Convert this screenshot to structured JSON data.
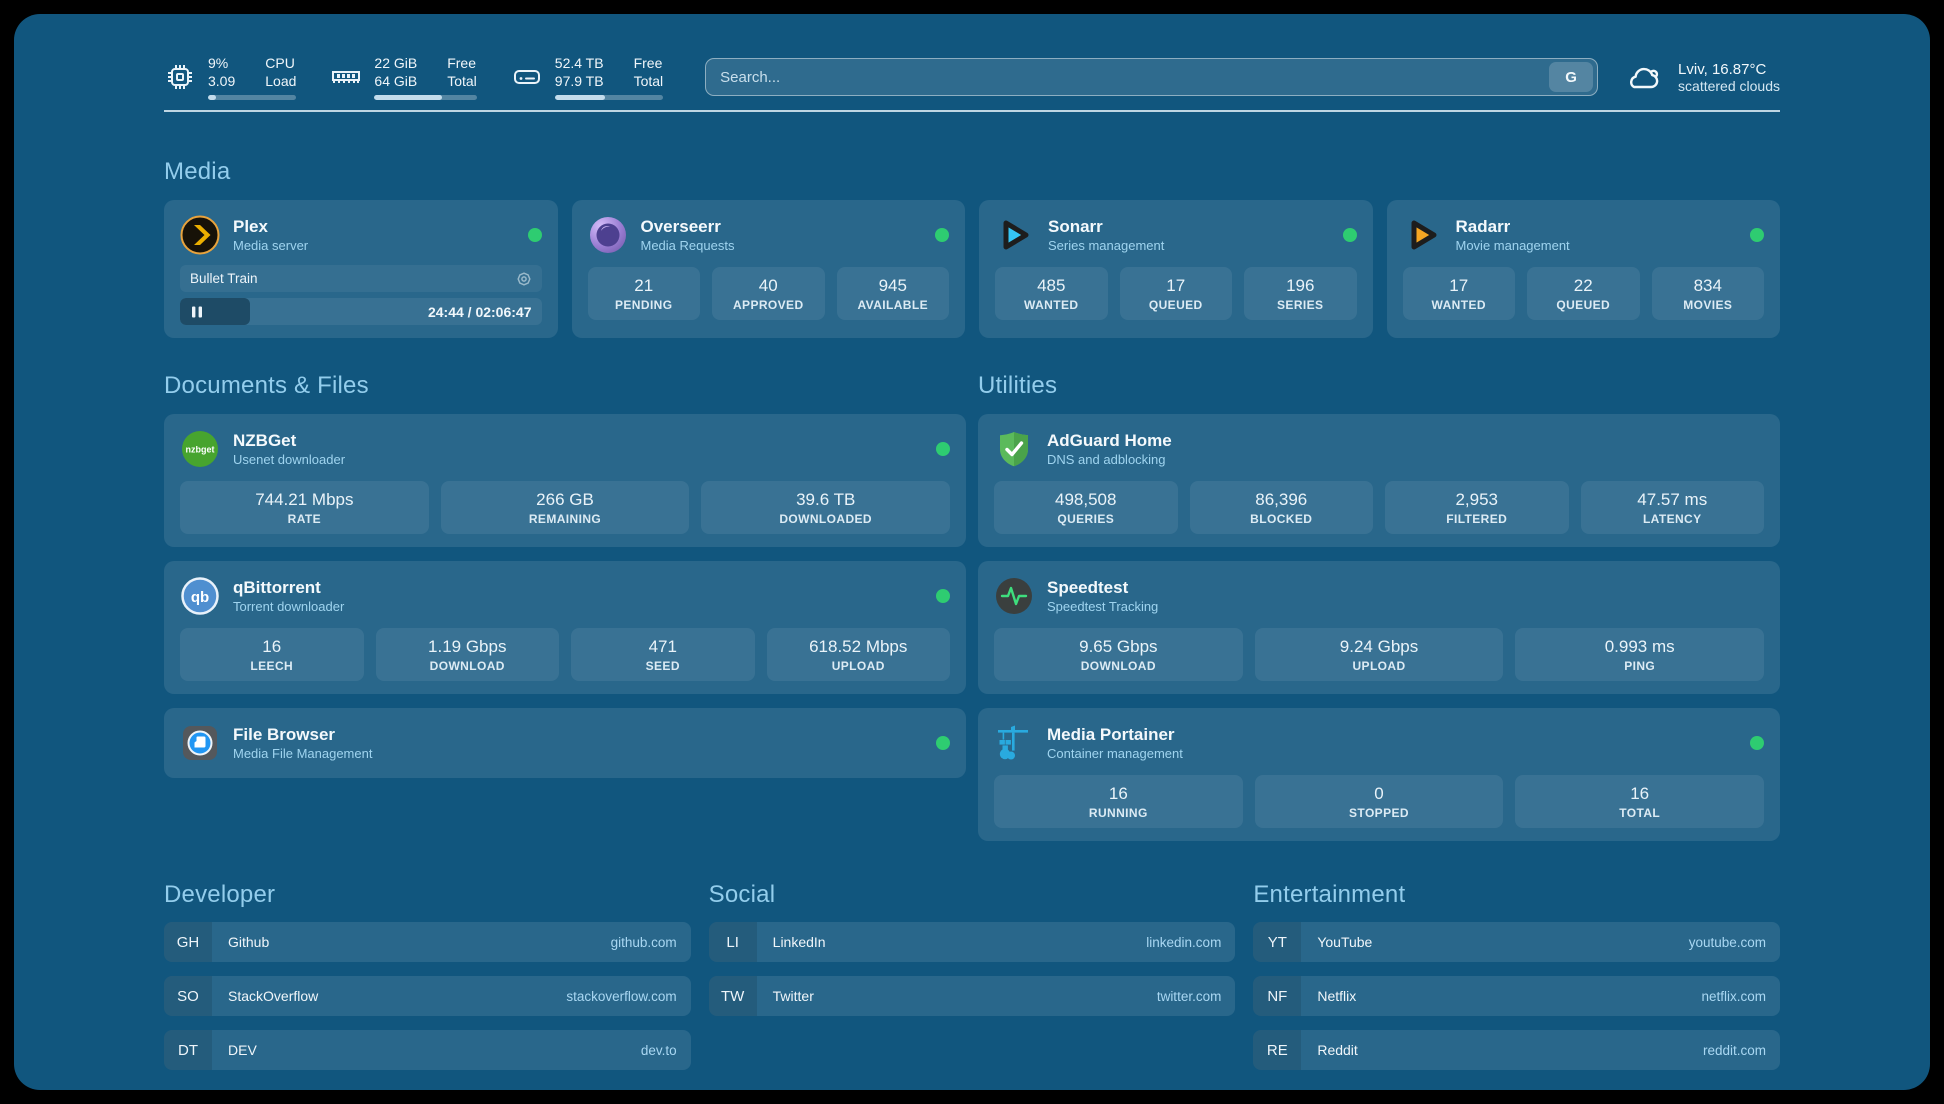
{
  "topbar": {
    "cpu": {
      "value_top": "9%",
      "value_bottom": "3.09",
      "label_top": "CPU",
      "label_bottom": "Load",
      "progress_pct": 9
    },
    "ram": {
      "value_top": "22 GiB",
      "value_bottom": "64 GiB",
      "label_top": "Free",
      "label_bottom": "Total",
      "progress_pct": 66
    },
    "disk": {
      "value_top": "52.4 TB",
      "value_bottom": "97.9 TB",
      "label_top": "Free",
      "label_bottom": "Total",
      "progress_pct": 46
    },
    "search": {
      "placeholder": "Search...",
      "engine_label": "G"
    },
    "weather": {
      "line1": "Lviv, 16.87°C",
      "line2": "scattered clouds"
    }
  },
  "media": {
    "title": "Media",
    "plex": {
      "name": "Plex",
      "subtitle": "Media server",
      "now_playing": "Bullet Train",
      "time": "24:44 / 02:06:47",
      "progress_pct": 19.5
    },
    "overseerr": {
      "name": "Overseerr",
      "subtitle": "Media Requests",
      "stats": [
        {
          "value": "21",
          "label": "PENDING"
        },
        {
          "value": "40",
          "label": "APPROVED"
        },
        {
          "value": "945",
          "label": "AVAILABLE"
        }
      ]
    },
    "sonarr": {
      "name": "Sonarr",
      "subtitle": "Series management",
      "stats": [
        {
          "value": "485",
          "label": "WANTED"
        },
        {
          "value": "17",
          "label": "QUEUED"
        },
        {
          "value": "196",
          "label": "SERIES"
        }
      ]
    },
    "radarr": {
      "name": "Radarr",
      "subtitle": "Movie management",
      "stats": [
        {
          "value": "17",
          "label": "WANTED"
        },
        {
          "value": "22",
          "label": "QUEUED"
        },
        {
          "value": "834",
          "label": "MOVIES"
        }
      ]
    }
  },
  "documents": {
    "title": "Documents & Files",
    "nzbget": {
      "name": "NZBGet",
      "subtitle": "Usenet downloader",
      "icon_label": "nzbget",
      "stats": [
        {
          "value": "744.21 Mbps",
          "label": "RATE"
        },
        {
          "value": "266 GB",
          "label": "REMAINING"
        },
        {
          "value": "39.6 TB",
          "label": "DOWNLOADED"
        }
      ]
    },
    "qbittorrent": {
      "name": "qBittorrent",
      "subtitle": "Torrent downloader",
      "icon_label": "qb",
      "stats": [
        {
          "value": "16",
          "label": "LEECH"
        },
        {
          "value": "1.19 Gbps",
          "label": "DOWNLOAD"
        },
        {
          "value": "471",
          "label": "SEED"
        },
        {
          "value": "618.52 Mbps",
          "label": "UPLOAD"
        }
      ]
    },
    "filebrowser": {
      "name": "File Browser",
      "subtitle": "Media File Management"
    }
  },
  "utilities": {
    "title": "Utilities",
    "adguard": {
      "name": "AdGuard Home",
      "subtitle": "DNS and adblocking",
      "stats": [
        {
          "value": "498,508",
          "label": "QUERIES"
        },
        {
          "value": "86,396",
          "label": "BLOCKED"
        },
        {
          "value": "2,953",
          "label": "FILTERED"
        },
        {
          "value": "47.57 ms",
          "label": "LATENCY"
        }
      ]
    },
    "speedtest": {
      "name": "Speedtest",
      "subtitle": "Speedtest Tracking",
      "stats": [
        {
          "value": "9.65 Gbps",
          "label": "DOWNLOAD"
        },
        {
          "value": "9.24 Gbps",
          "label": "UPLOAD"
        },
        {
          "value": "0.993 ms",
          "label": "PING"
        }
      ]
    },
    "portainer": {
      "name": "Media Portainer",
      "subtitle": "Container management",
      "stats": [
        {
          "value": "16",
          "label": "RUNNING"
        },
        {
          "value": "0",
          "label": "STOPPED"
        },
        {
          "value": "16",
          "label": "TOTAL"
        }
      ]
    }
  },
  "bookmarks": {
    "developer": {
      "title": "Developer",
      "items": [
        {
          "abbr": "GH",
          "name": "Github",
          "url": "github.com"
        },
        {
          "abbr": "SO",
          "name": "StackOverflow",
          "url": "stackoverflow.com"
        },
        {
          "abbr": "DT",
          "name": "DEV",
          "url": "dev.to"
        }
      ]
    },
    "social": {
      "title": "Social",
      "items": [
        {
          "abbr": "LI",
          "name": "LinkedIn",
          "url": "linkedin.com"
        },
        {
          "abbr": "TW",
          "name": "Twitter",
          "url": "twitter.com"
        }
      ]
    },
    "entertainment": {
      "title": "Entertainment",
      "items": [
        {
          "abbr": "YT",
          "name": "YouTube",
          "url": "youtube.com"
        },
        {
          "abbr": "NF",
          "name": "Netflix",
          "url": "netflix.com"
        },
        {
          "abbr": "RE",
          "name": "Reddit",
          "url": "reddit.com"
        }
      ]
    }
  },
  "colors": {
    "status_online": "#2ecc71",
    "accent_heading": "#93cdec",
    "background": "#11567e"
  }
}
